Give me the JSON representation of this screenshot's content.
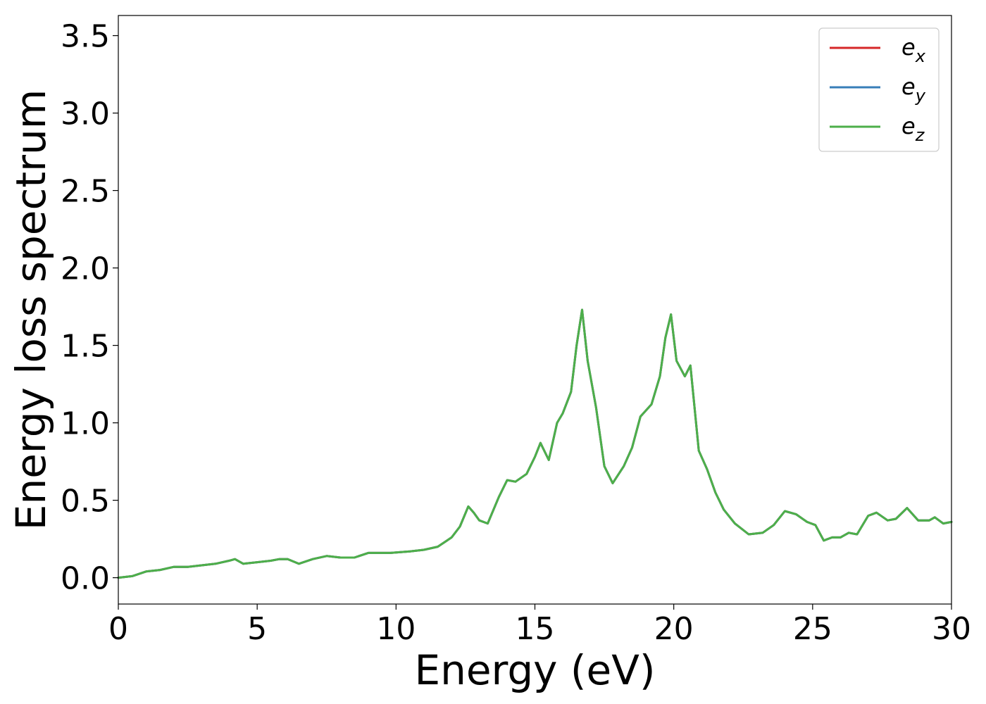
{
  "chart_data": {
    "type": "line",
    "title": "",
    "xlabel": "Energy (eV)",
    "ylabel": "Energy loss spectrum",
    "xlim": [
      0,
      30
    ],
    "ylim": [
      -0.17,
      3.63
    ],
    "xticks": [
      0,
      5,
      10,
      15,
      20,
      25,
      30
    ],
    "xtick_labels": [
      "0",
      "5",
      "10",
      "15",
      "20",
      "25",
      "30"
    ],
    "yticks": [
      0.0,
      0.5,
      1.0,
      1.5,
      2.0,
      2.5,
      3.0,
      3.5
    ],
    "ytick_labels": [
      "0.0",
      "0.5",
      "1.0",
      "1.5",
      "2.0",
      "2.5",
      "3.0",
      "3.5"
    ],
    "grid": false,
    "legend_position": "top-right",
    "x": [
      0,
      0.5,
      1.0,
      1.5,
      2.0,
      2.5,
      3.0,
      3.5,
      4.0,
      4.2,
      4.5,
      5.0,
      5.5,
      5.8,
      6.1,
      6.5,
      7.0,
      7.5,
      8.0,
      8.5,
      9.0,
      9.5,
      9.8,
      10.5,
      11.0,
      11.5,
      12.0,
      12.3,
      12.6,
      12.8,
      13.0,
      13.3,
      13.7,
      14.0,
      14.3,
      14.7,
      15.0,
      15.2,
      15.5,
      15.8,
      16.0,
      16.3,
      16.5,
      16.7,
      16.9,
      17.2,
      17.5,
      17.8,
      18.2,
      18.5,
      18.8,
      19.2,
      19.5,
      19.7,
      19.9,
      20.1,
      20.4,
      20.6,
      20.9,
      21.2,
      21.5,
      21.8,
      22.2,
      22.7,
      23.2,
      23.6,
      24.0,
      24.4,
      24.8,
      25.1,
      25.4,
      25.7,
      26.0,
      26.3,
      26.6,
      27.0,
      27.3,
      27.7,
      28.0,
      28.4,
      28.8,
      29.2,
      29.4,
      29.7,
      30.0
    ],
    "series": [
      {
        "name": "e_x",
        "legend_main": "e",
        "legend_sub": "x",
        "color": "#d62728",
        "values": [
          0.0,
          0.01,
          0.04,
          0.05,
          0.07,
          0.07,
          0.08,
          0.09,
          0.11,
          0.12,
          0.09,
          0.1,
          0.11,
          0.12,
          0.12,
          0.09,
          0.12,
          0.14,
          0.13,
          0.13,
          0.16,
          0.16,
          0.16,
          0.17,
          0.18,
          0.2,
          0.26,
          0.33,
          0.46,
          0.42,
          0.37,
          0.35,
          0.52,
          0.63,
          0.62,
          0.67,
          0.78,
          0.87,
          0.76,
          1.0,
          1.06,
          1.2,
          1.5,
          1.73,
          1.4,
          1.1,
          0.72,
          0.61,
          0.72,
          0.84,
          1.04,
          1.12,
          1.3,
          1.55,
          1.7,
          1.4,
          1.3,
          1.37,
          0.82,
          0.7,
          0.55,
          0.44,
          0.35,
          0.28,
          0.29,
          0.34,
          0.43,
          0.41,
          0.36,
          0.34,
          0.24,
          0.26,
          0.26,
          0.29,
          0.28,
          0.4,
          0.42,
          0.37,
          0.38,
          0.45,
          0.37,
          0.37,
          0.39,
          0.35,
          0.36
        ]
      },
      {
        "name": "e_y",
        "legend_main": "e",
        "legend_sub": "y",
        "color": "#377eb8",
        "values": [
          0.0,
          0.01,
          0.04,
          0.05,
          0.07,
          0.07,
          0.08,
          0.09,
          0.11,
          0.12,
          0.09,
          0.1,
          0.11,
          0.12,
          0.12,
          0.09,
          0.12,
          0.14,
          0.13,
          0.13,
          0.16,
          0.16,
          0.16,
          0.17,
          0.18,
          0.2,
          0.26,
          0.33,
          0.46,
          0.42,
          0.37,
          0.35,
          0.52,
          0.63,
          0.62,
          0.67,
          0.78,
          0.87,
          0.76,
          1.0,
          1.06,
          1.2,
          1.5,
          1.73,
          1.4,
          1.1,
          0.72,
          0.61,
          0.72,
          0.84,
          1.04,
          1.12,
          1.3,
          1.55,
          1.7,
          1.4,
          1.3,
          1.37,
          0.82,
          0.7,
          0.55,
          0.44,
          0.35,
          0.28,
          0.29,
          0.34,
          0.43,
          0.41,
          0.36,
          0.34,
          0.24,
          0.26,
          0.26,
          0.29,
          0.28,
          0.4,
          0.42,
          0.37,
          0.38,
          0.45,
          0.37,
          0.37,
          0.39,
          0.35,
          0.36
        ]
      },
      {
        "name": "e_z",
        "legend_main": "e",
        "legend_sub": "z",
        "color": "#4daf4a",
        "values": [
          0.0,
          0.01,
          0.04,
          0.05,
          0.07,
          0.07,
          0.08,
          0.09,
          0.11,
          0.12,
          0.09,
          0.1,
          0.11,
          0.12,
          0.12,
          0.09,
          0.12,
          0.14,
          0.13,
          0.13,
          0.16,
          0.16,
          0.16,
          0.17,
          0.18,
          0.2,
          0.26,
          0.33,
          0.46,
          0.42,
          0.37,
          0.35,
          0.52,
          0.63,
          0.62,
          0.67,
          0.78,
          0.87,
          0.76,
          1.0,
          1.06,
          1.2,
          1.5,
          1.73,
          1.4,
          1.1,
          0.72,
          0.61,
          0.72,
          0.84,
          1.04,
          1.12,
          1.3,
          1.55,
          1.7,
          1.4,
          1.3,
          1.37,
          0.82,
          0.7,
          0.55,
          0.44,
          0.35,
          0.28,
          0.29,
          0.34,
          0.43,
          0.41,
          0.36,
          0.34,
          0.24,
          0.26,
          0.26,
          0.29,
          0.28,
          0.4,
          0.42,
          0.37,
          0.38,
          0.45,
          0.37,
          0.37,
          0.39,
          0.35,
          0.36
        ]
      }
    ]
  }
}
